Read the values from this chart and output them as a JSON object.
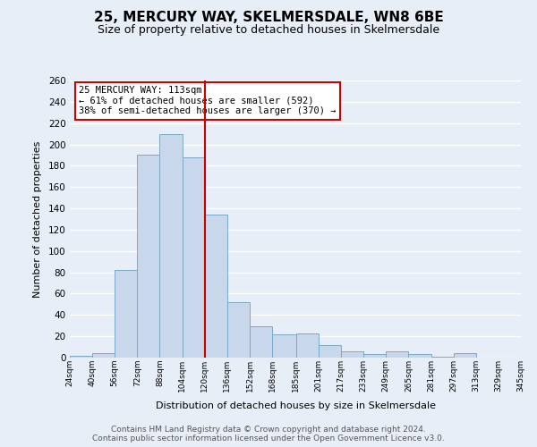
{
  "title": "25, MERCURY WAY, SKELMERSDALE, WN8 6BE",
  "subtitle": "Size of property relative to detached houses in Skelmersdale",
  "xlabel": "Distribution of detached houses by size in Skelmersdale",
  "ylabel": "Number of detached properties",
  "bar_color": "#c8d8ea",
  "bar_edge_color": "#7aaac8",
  "background_color": "#e8eef8",
  "grid_color": "#ffffff",
  "vline_x": 113,
  "vline_color": "#cc0000",
  "annotation_text": "25 MERCURY WAY: 113sqm\n← 61% of detached houses are smaller (592)\n38% of semi-detached houses are larger (370) →",
  "annotation_box_color": "#cc0000",
  "bins": [
    24,
    40,
    56,
    72,
    88,
    104,
    120,
    136,
    152,
    168,
    185,
    201,
    217,
    233,
    249,
    265,
    281,
    297,
    313,
    329,
    345
  ],
  "bin_labels": [
    "24sqm",
    "40sqm",
    "56sqm",
    "72sqm",
    "88sqm",
    "104sqm",
    "120sqm",
    "136sqm",
    "152sqm",
    "168sqm",
    "185sqm",
    "201sqm",
    "217sqm",
    "233sqm",
    "249sqm",
    "265sqm",
    "281sqm",
    "297sqm",
    "313sqm",
    "329sqm",
    "345sqm"
  ],
  "counts": [
    2,
    4,
    82,
    190,
    210,
    188,
    134,
    52,
    29,
    22,
    23,
    12,
    6,
    3,
    6,
    3,
    1,
    4,
    0,
    0
  ],
  "ylim": [
    0,
    260
  ],
  "yticks": [
    0,
    20,
    40,
    60,
    80,
    100,
    120,
    140,
    160,
    180,
    200,
    220,
    240,
    260
  ],
  "footer_line1": "Contains HM Land Registry data © Crown copyright and database right 2024.",
  "footer_line2": "Contains public sector information licensed under the Open Government Licence v3.0.",
  "title_fontsize": 11,
  "subtitle_fontsize": 9,
  "footer_fontsize": 6.5
}
